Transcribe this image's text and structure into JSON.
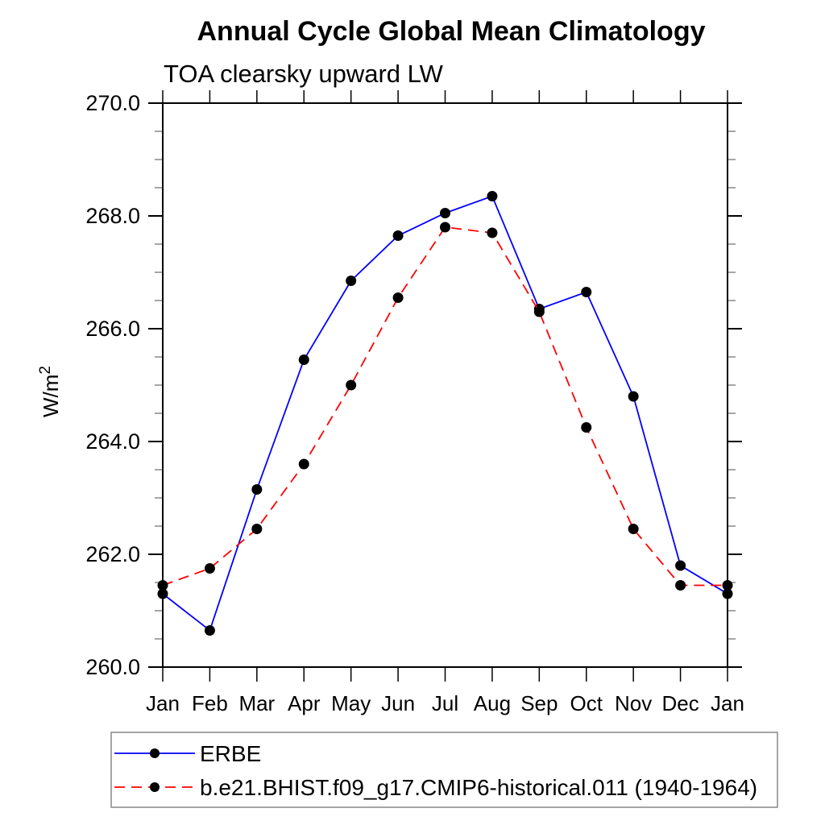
{
  "header": {
    "title": "Annual Cycle Global Mean Climatology",
    "subtitle": "TOA clearsky upward LW"
  },
  "chart_data": {
    "type": "line",
    "title": "Annual Cycle Global Mean Climatology",
    "subtitle": "TOA clearsky upward LW",
    "xlabel": "",
    "ylabel": "W/m²",
    "categories": [
      "Jan",
      "Feb",
      "Mar",
      "Apr",
      "May",
      "Jun",
      "Jul",
      "Aug",
      "Sep",
      "Oct",
      "Nov",
      "Dec",
      "Jan"
    ],
    "ylim": [
      260.0,
      270.0
    ],
    "ytick_major_interval": 2.0,
    "ytick_minor_interval": 0.5,
    "ytick_labels": [
      "260.0",
      "262.0",
      "264.0",
      "266.0",
      "268.0",
      "270.0"
    ],
    "grid": false,
    "legend_position": "bottom-left",
    "colors": {
      "axis": "#000000",
      "minor_tick": "#777777",
      "legend_border": "#888888",
      "marker": "#000000"
    },
    "series": [
      {
        "name": "ERBE",
        "color": "#0000ff",
        "line_style": "solid",
        "marker": "filled-circle",
        "marker_color": "#000000",
        "values": [
          261.3,
          260.65,
          263.15,
          265.45,
          266.85,
          267.65,
          268.05,
          268.35,
          266.35,
          266.65,
          264.8,
          261.8,
          261.3
        ]
      },
      {
        "name": "b.e21.BHIST.f09_g17.CMIP6-historical.011 (1940-1964)",
        "color": "#ff0000",
        "line_style": "dashed",
        "marker": "filled-circle",
        "marker_color": "#000000",
        "values": [
          261.45,
          261.75,
          262.45,
          263.6,
          265.0,
          266.55,
          267.8,
          267.7,
          266.3,
          264.25,
          262.45,
          261.45,
          261.45
        ]
      }
    ]
  }
}
